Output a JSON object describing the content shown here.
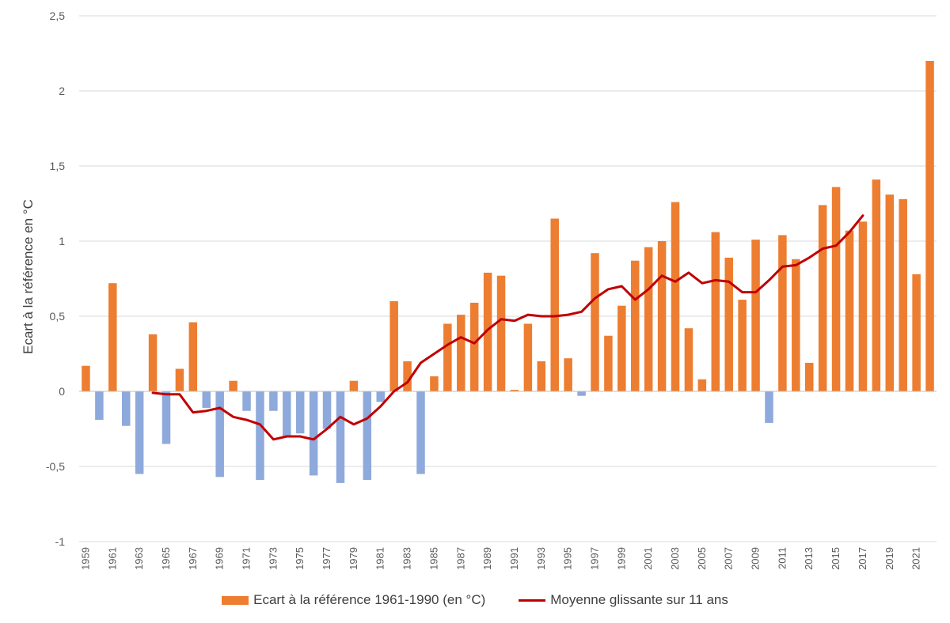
{
  "chart_data": {
    "type": "bar",
    "title": "",
    "ylabel": "Ecart à la référence en °C",
    "xlabel": "",
    "ylim": [
      -1,
      2.5
    ],
    "yticks": [
      -1,
      -0.5,
      0,
      0.5,
      1,
      1.5,
      2,
      2.5
    ],
    "ytick_labels": [
      "-1",
      "-0,5",
      "0",
      "0,5",
      "1",
      "1,5",
      "2",
      "2,5"
    ],
    "grid": true,
    "legend_position": "bottom",
    "x": [
      1959,
      1960,
      1961,
      1962,
      1963,
      1964,
      1965,
      1966,
      1967,
      1968,
      1969,
      1970,
      1971,
      1972,
      1973,
      1974,
      1975,
      1976,
      1977,
      1978,
      1979,
      1980,
      1981,
      1982,
      1983,
      1984,
      1985,
      1986,
      1987,
      1988,
      1989,
      1990,
      1991,
      1992,
      1993,
      1994,
      1995,
      1996,
      1997,
      1998,
      1999,
      2000,
      2001,
      2002,
      2003,
      2004,
      2005,
      2006,
      2007,
      2008,
      2009,
      2010,
      2011,
      2012,
      2013,
      2014,
      2015,
      2016,
      2017,
      2018,
      2019,
      2020,
      2021,
      2022
    ],
    "x_tick_labels": [
      "1959",
      "1961",
      "1963",
      "1965",
      "1967",
      "1969",
      "1971",
      "1973",
      "1975",
      "1977",
      "1979",
      "1981",
      "1983",
      "1985",
      "1987",
      "1989",
      "1991",
      "1993",
      "1995",
      "1997",
      "1999",
      "2001",
      "2003",
      "2005",
      "2007",
      "2009",
      "2011",
      "2013",
      "2015",
      "2017",
      "2019",
      "2021"
    ],
    "series": [
      {
        "name": "Ecart à la référence 1961-1990 (en °C)",
        "kind": "bar",
        "color_positive": "#ED7D31",
        "color_negative": "#8EA9DB",
        "values": [
          0.17,
          -0.19,
          0.72,
          -0.23,
          -0.55,
          0.38,
          -0.35,
          0.15,
          0.46,
          -0.11,
          -0.57,
          0.07,
          -0.13,
          -0.59,
          -0.13,
          -0.3,
          -0.28,
          -0.56,
          -0.25,
          -0.61,
          0.07,
          -0.59,
          -0.07,
          0.6,
          0.2,
          -0.55,
          0.1,
          0.45,
          0.51,
          0.59,
          0.79,
          0.77,
          0.01,
          0.45,
          0.2,
          1.15,
          0.22,
          -0.03,
          0.92,
          0.37,
          0.57,
          0.87,
          0.96,
          1.0,
          1.26,
          0.42,
          0.08,
          1.06,
          0.89,
          0.61,
          1.01,
          -0.21,
          1.04,
          0.88,
          0.19,
          1.24,
          1.36,
          1.07,
          1.13,
          1.41,
          1.31,
          1.28,
          0.78,
          2.2
        ]
      },
      {
        "name": "Moyenne glissante sur 11 ans",
        "kind": "line",
        "color": "#C00000",
        "x": [
          1964,
          1965,
          1966,
          1967,
          1968,
          1969,
          1970,
          1971,
          1972,
          1973,
          1974,
          1975,
          1976,
          1977,
          1978,
          1979,
          1980,
          1981,
          1982,
          1983,
          1984,
          1985,
          1986,
          1987,
          1988,
          1989,
          1990,
          1991,
          1992,
          1993,
          1994,
          1995,
          1996,
          1997,
          1998,
          1999,
          2000,
          2001,
          2002,
          2003,
          2004,
          2005,
          2006,
          2007,
          2008,
          2009,
          2010,
          2011,
          2012,
          2013,
          2014,
          2015,
          2016,
          2017
        ],
        "values": [
          -0.01,
          -0.02,
          -0.02,
          -0.14,
          -0.13,
          -0.11,
          -0.17,
          -0.19,
          -0.22,
          -0.32,
          -0.3,
          -0.3,
          -0.32,
          -0.25,
          -0.17,
          -0.22,
          -0.18,
          -0.1,
          0.0,
          0.06,
          0.19,
          0.25,
          0.31,
          0.36,
          0.32,
          0.41,
          0.48,
          0.47,
          0.51,
          0.5,
          0.5,
          0.51,
          0.53,
          0.62,
          0.68,
          0.7,
          0.61,
          0.68,
          0.77,
          0.73,
          0.79,
          0.72,
          0.74,
          0.73,
          0.66,
          0.66,
          0.74,
          0.83,
          0.84,
          0.89,
          0.95,
          0.97,
          1.06,
          1.17
        ]
      }
    ]
  }
}
